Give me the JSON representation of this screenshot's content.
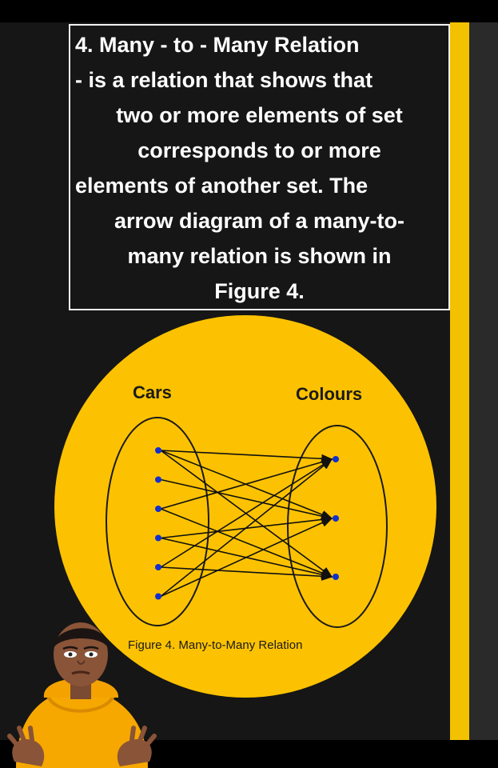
{
  "heading": {
    "lines": [
      "4. Many - to - Many Relation",
      "- is a relation that shows that",
      "two or more elements of set",
      "corresponds to or more",
      "elements of another set.  The",
      "arrow diagram of a many-to-",
      "many relation is shown in",
      "Figure 4."
    ]
  },
  "diagram": {
    "set_a_label": "Cars",
    "set_b_label": "Colours",
    "caption": "Figure 4. Many-to-Many Relation",
    "set_a_count": 6,
    "set_b_count": 3,
    "mappings": [
      [
        0,
        0
      ],
      [
        0,
        1
      ],
      [
        0,
        2
      ],
      [
        1,
        1
      ],
      [
        2,
        0
      ],
      [
        2,
        2
      ],
      [
        3,
        1
      ],
      [
        3,
        2
      ],
      [
        4,
        0
      ],
      [
        4,
        2
      ],
      [
        5,
        0
      ],
      [
        5,
        1
      ]
    ]
  },
  "colors": {
    "gold": "#fcc201",
    "dot": "#1030d0",
    "arrow": "#111111"
  }
}
